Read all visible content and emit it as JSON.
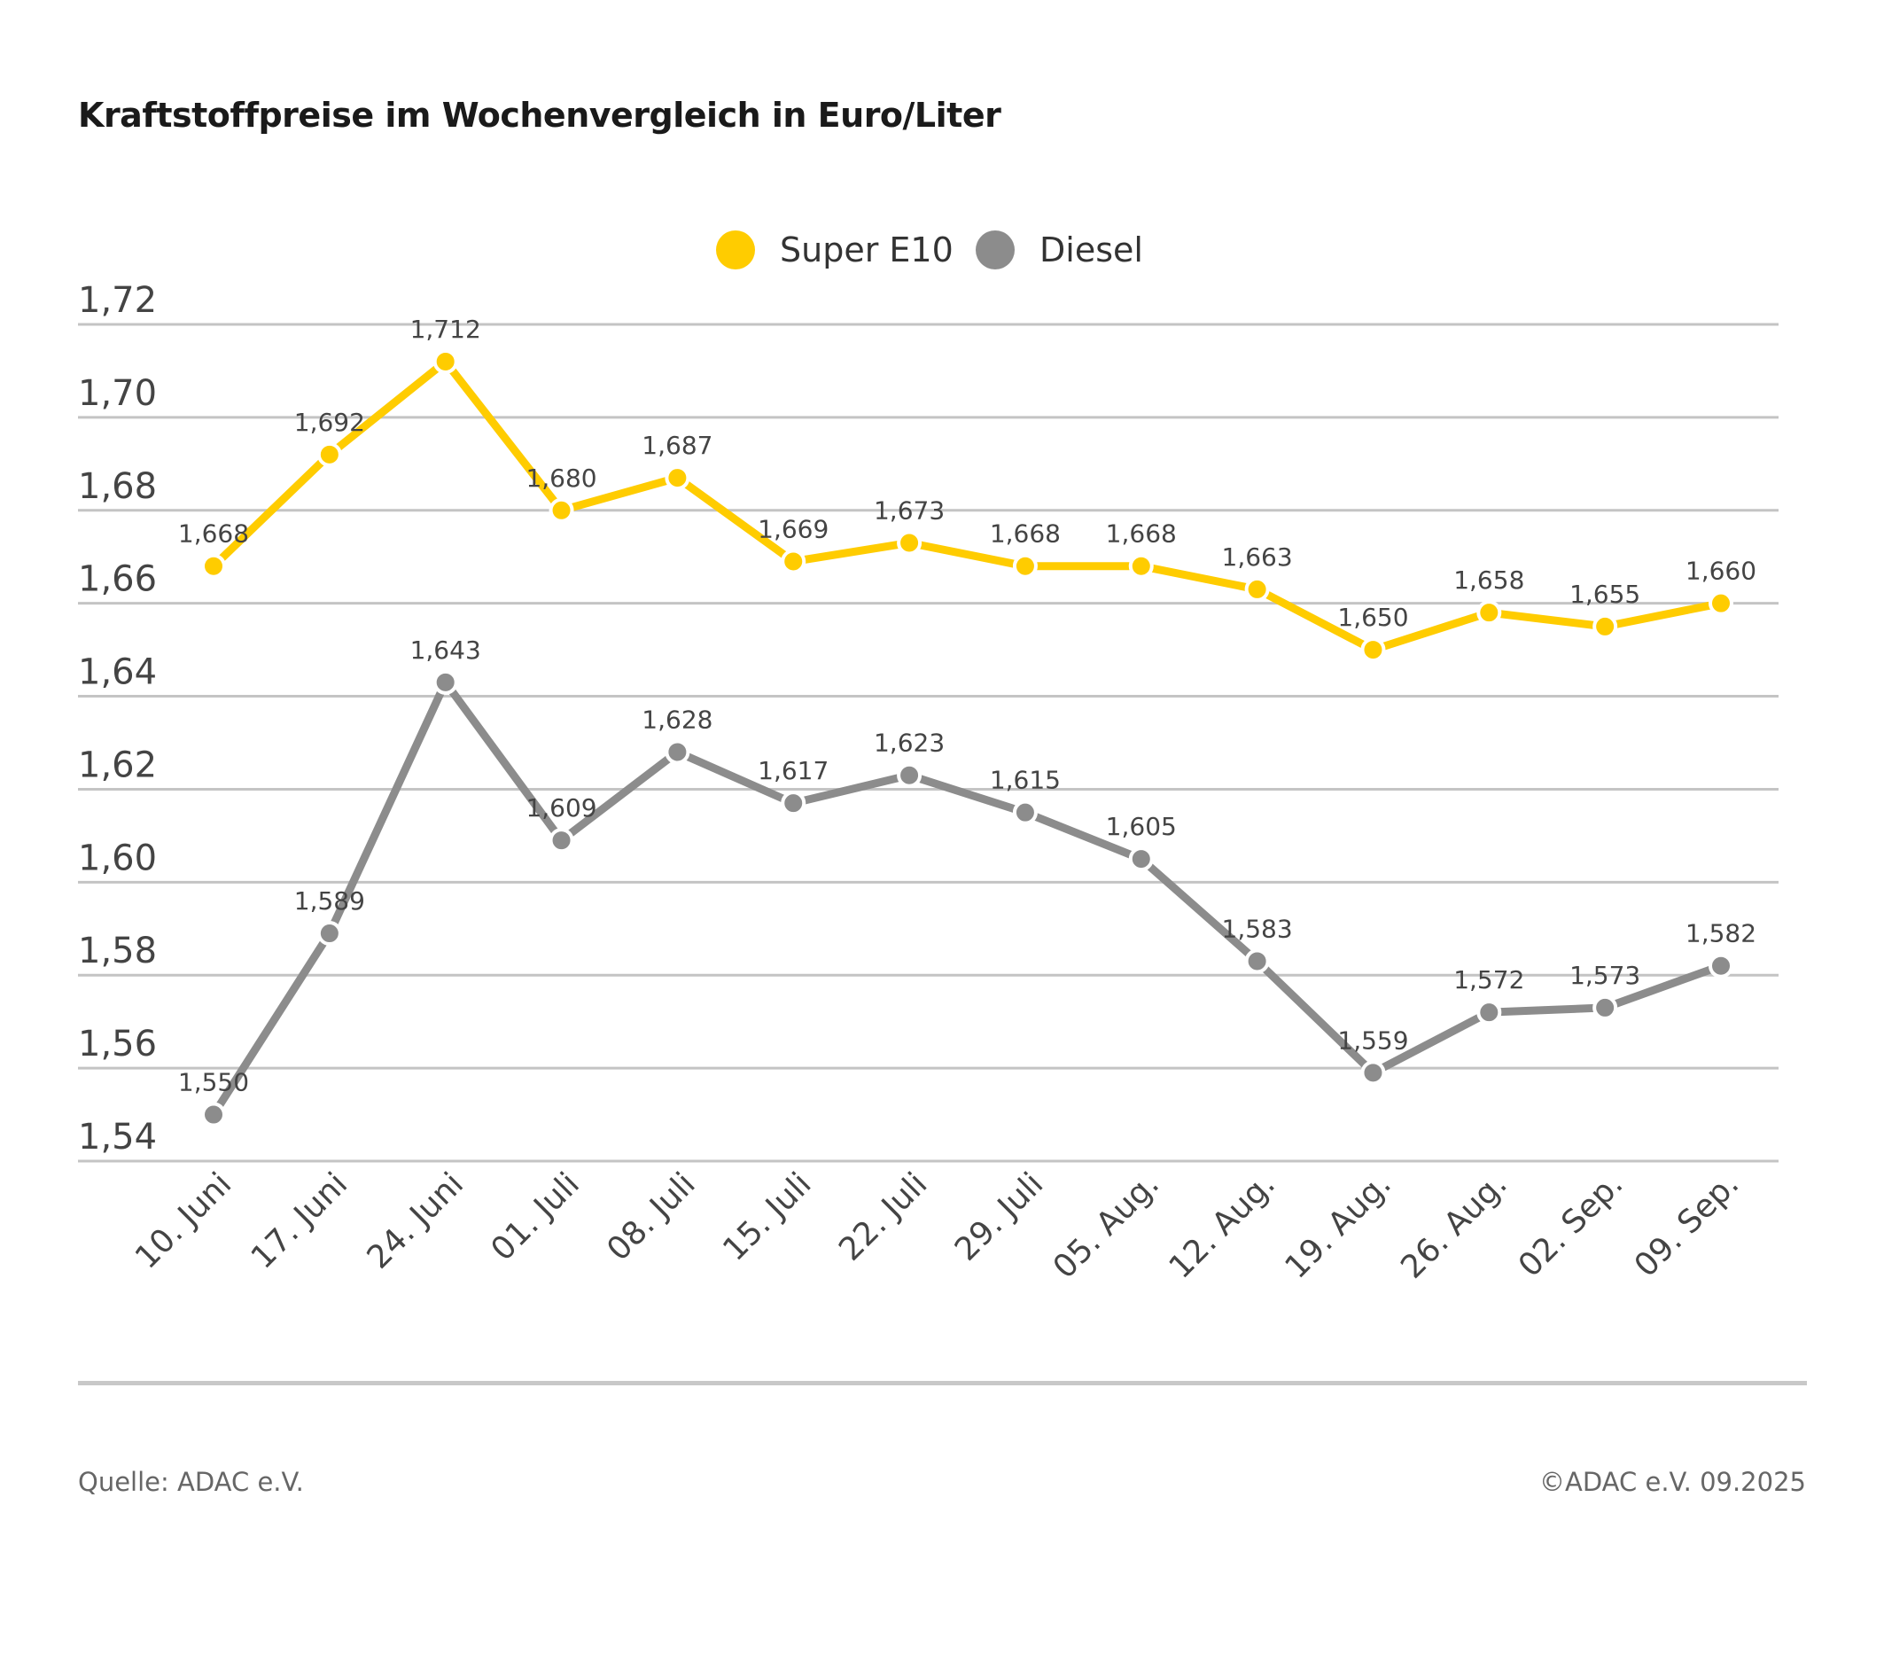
{
  "title": "Kraftstoffpreise im Wochenvergleich in Euro/Liter",
  "footer": {
    "source": "Quelle: ADAC e.V.",
    "copyright": "©ADAC e.V. 09.2025"
  },
  "chart_data": {
    "type": "line",
    "title": "Kraftstoffpreise im Wochenvergleich in Euro/Liter",
    "xlabel": "",
    "ylabel": "",
    "ylim": [
      1.54,
      1.72
    ],
    "yticks": [
      "1,54",
      "1,56",
      "1,58",
      "1,60",
      "1,62",
      "1,64",
      "1,66",
      "1,68",
      "1,70",
      "1,72"
    ],
    "grid": true,
    "legend": "top-center",
    "categories": [
      "10. Juni",
      "17. Juni",
      "24. Juni",
      "01. Juli",
      "08. Juli",
      "15. Juli",
      "22. Juli",
      "29. Juli",
      "05. Aug.",
      "12. Aug.",
      "19. Aug.",
      "26. Aug.",
      "02. Sep.",
      "09. Sep."
    ],
    "series": [
      {
        "name": "Super E10",
        "color": "#ffcc00",
        "values": [
          1.668,
          1.692,
          1.712,
          1.68,
          1.687,
          1.669,
          1.673,
          1.668,
          1.668,
          1.663,
          1.65,
          1.658,
          1.655,
          1.66
        ]
      },
      {
        "name": "Diesel",
        "color": "#8c8c8c",
        "values": [
          1.55,
          1.589,
          1.643,
          1.609,
          1.628,
          1.617,
          1.623,
          1.615,
          1.605,
          1.583,
          1.559,
          1.572,
          1.573,
          1.582
        ]
      }
    ]
  }
}
